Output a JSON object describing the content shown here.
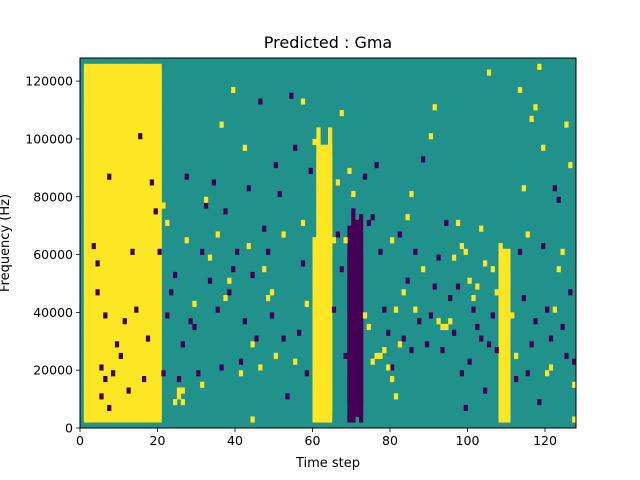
{
  "chart_data": {
    "type": "heatmap",
    "title": "Predicted : Gma",
    "xlabel": "Time step",
    "ylabel": "Frequency (Hz)",
    "xlim": [
      0,
      128
    ],
    "ylim": [
      0,
      128000
    ],
    "x_ticks": [
      0,
      20,
      40,
      60,
      80,
      100,
      120
    ],
    "x_tick_labels": [
      "0",
      "20",
      "40",
      "60",
      "80",
      "100",
      "120"
    ],
    "y_ticks": [
      0,
      20000,
      40000,
      60000,
      80000,
      100000,
      120000
    ],
    "y_tick_labels": [
      "0",
      "20000",
      "40000",
      "60000",
      "80000",
      "100000",
      "120000"
    ],
    "colormap": "viridis",
    "colors": {
      "background": "#21918c",
      "high": "#fde725",
      "low": "#440154",
      "frame": "#000000"
    },
    "grid": false,
    "n_time_steps": 128,
    "n_frequency_bins": 64,
    "bin_hz": 2000,
    "yellow_runs": [
      [
        1,
        20,
        4000,
        124000,
        2000,
        122000
      ],
      [
        60,
        60,
        4000,
        64000,
        2000,
        40000,
        6000,
        34000
      ],
      [
        61,
        61,
        4000,
        102000,
        2000,
        98000,
        6000,
        92000
      ],
      [
        62,
        62,
        4000,
        96000,
        2000,
        94000,
        6000,
        88000
      ],
      [
        63,
        63,
        6000,
        96000,
        2000,
        90000,
        4000,
        86000
      ],
      [
        64,
        64,
        6000,
        102000,
        2000,
        96000,
        4000,
        92000
      ],
      [
        108,
        108,
        4000,
        62000,
        2000,
        52000,
        6000,
        44000
      ],
      [
        109,
        109,
        6000,
        60000,
        2000,
        48000,
        4000,
        40000
      ],
      [
        110,
        110,
        4000,
        60000,
        2000,
        52000,
        6000,
        46000
      ]
    ],
    "purple_runs": [
      [
        69,
        69,
        8000,
        68000,
        2000,
        60000
      ],
      [
        70,
        70,
        10000,
        74000,
        2000,
        66000
      ],
      [
        71,
        71,
        8000,
        70000,
        4000,
        62000
      ],
      [
        72,
        72,
        8000,
        72000,
        2000,
        58000
      ]
    ],
    "yellow_cells": [
      [
        2,
        122000
      ],
      [
        1,
        110000
      ],
      [
        2,
        110000
      ],
      [
        2,
        106000
      ],
      [
        1,
        2000
      ],
      [
        4,
        24000
      ],
      [
        5,
        54000
      ],
      [
        5,
        60000
      ],
      [
        12,
        32000
      ],
      [
        13,
        30000
      ],
      [
        16,
        62000
      ],
      [
        21,
        76000
      ],
      [
        22,
        70000
      ],
      [
        24,
        8000
      ],
      [
        25,
        12000
      ],
      [
        25,
        10000
      ],
      [
        26,
        12000
      ],
      [
        26,
        8000
      ],
      [
        27,
        64000
      ],
      [
        29,
        42000
      ],
      [
        31,
        14000
      ],
      [
        32,
        78000
      ],
      [
        33,
        58000
      ],
      [
        35,
        66000
      ],
      [
        36,
        104000
      ],
      [
        37,
        44000
      ],
      [
        38,
        50000
      ],
      [
        39,
        116000
      ],
      [
        41,
        18000
      ],
      [
        42,
        96000
      ],
      [
        43,
        62000
      ],
      [
        44,
        28000
      ],
      [
        44,
        2000
      ],
      [
        46,
        20000
      ],
      [
        47,
        54000
      ],
      [
        48,
        44000
      ],
      [
        49,
        46000
      ],
      [
        50,
        24000
      ],
      [
        52,
        66000
      ],
      [
        55,
        22000
      ],
      [
        57,
        70000
      ],
      [
        57,
        112000
      ],
      [
        58,
        42000
      ],
      [
        60,
        98000
      ],
      [
        65,
        64000
      ],
      [
        66,
        84000
      ],
      [
        67,
        108000
      ],
      [
        68,
        64000
      ],
      [
        69,
        88000
      ],
      [
        70,
        80000
      ],
      [
        73,
        38000
      ],
      [
        74,
        34000
      ],
      [
        75,
        22000
      ],
      [
        76,
        24000
      ],
      [
        77,
        24000
      ],
      [
        78,
        26000
      ],
      [
        79,
        20000
      ],
      [
        80,
        16000
      ],
      [
        81,
        10000
      ],
      [
        80,
        64000
      ],
      [
        81,
        40000
      ],
      [
        82,
        28000
      ],
      [
        83,
        46000
      ],
      [
        84,
        72000
      ],
      [
        85,
        80000
      ],
      [
        86,
        40000
      ],
      [
        88,
        54000
      ],
      [
        90,
        100000
      ],
      [
        91,
        110000
      ],
      [
        92,
        36000
      ],
      [
        93,
        34000
      ],
      [
        94,
        34000
      ],
      [
        95,
        36000
      ],
      [
        96,
        58000
      ],
      [
        97,
        70000
      ],
      [
        98,
        62000
      ],
      [
        99,
        60000
      ],
      [
        100,
        50000
      ],
      [
        101,
        44000
      ],
      [
        102,
        48000
      ],
      [
        103,
        68000
      ],
      [
        104,
        56000
      ],
      [
        105,
        122000
      ],
      [
        106,
        54000
      ],
      [
        107,
        46000
      ],
      [
        108,
        14000
      ],
      [
        111,
        38000
      ],
      [
        112,
        24000
      ],
      [
        113,
        116000
      ],
      [
        114,
        82000
      ],
      [
        115,
        66000
      ],
      [
        116,
        106000
      ],
      [
        117,
        110000
      ],
      [
        118,
        124000
      ],
      [
        119,
        96000
      ],
      [
        120,
        18000
      ],
      [
        121,
        20000
      ],
      [
        122,
        40000
      ],
      [
        123,
        54000
      ],
      [
        124,
        60000
      ],
      [
        125,
        104000
      ],
      [
        126,
        90000
      ],
      [
        127,
        14000
      ],
      [
        127,
        2000
      ]
    ],
    "purple_cells": [
      [
        3,
        62000
      ],
      [
        4,
        46000
      ],
      [
        4,
        56000
      ],
      [
        5,
        10000
      ],
      [
        5,
        20000
      ],
      [
        6,
        38000
      ],
      [
        6,
        16000
      ],
      [
        7,
        86000
      ],
      [
        7,
        6000
      ],
      [
        8,
        18000
      ],
      [
        9,
        28000
      ],
      [
        10,
        24000
      ],
      [
        11,
        36000
      ],
      [
        12,
        12000
      ],
      [
        13,
        60000
      ],
      [
        14,
        40000
      ],
      [
        15,
        100000
      ],
      [
        16,
        16000
      ],
      [
        17,
        30000
      ],
      [
        18,
        84000
      ],
      [
        19,
        74000
      ],
      [
        20,
        60000
      ],
      [
        21,
        18000
      ],
      [
        22,
        38000
      ],
      [
        23,
        46000
      ],
      [
        24,
        52000
      ],
      [
        25,
        16000
      ],
      [
        26,
        28000
      ],
      [
        27,
        86000
      ],
      [
        28,
        36000
      ],
      [
        29,
        34000
      ],
      [
        30,
        18000
      ],
      [
        31,
        60000
      ],
      [
        32,
        76000
      ],
      [
        33,
        50000
      ],
      [
        34,
        84000
      ],
      [
        35,
        40000
      ],
      [
        36,
        20000
      ],
      [
        37,
        74000
      ],
      [
        38,
        46000
      ],
      [
        39,
        54000
      ],
      [
        40,
        60000
      ],
      [
        41,
        22000
      ],
      [
        42,
        36000
      ],
      [
        43,
        82000
      ],
      [
        44,
        52000
      ],
      [
        45,
        30000
      ],
      [
        46,
        112000
      ],
      [
        47,
        68000
      ],
      [
        48,
        60000
      ],
      [
        49,
        38000
      ],
      [
        50,
        90000
      ],
      [
        51,
        80000
      ],
      [
        52,
        30000
      ],
      [
        53,
        10000
      ],
      [
        54,
        114000
      ],
      [
        55,
        96000
      ],
      [
        56,
        32000
      ],
      [
        57,
        56000
      ],
      [
        58,
        18000
      ],
      [
        59,
        88000
      ],
      [
        65,
        40000
      ],
      [
        66,
        66000
      ],
      [
        67,
        54000
      ],
      [
        68,
        24000
      ],
      [
        73,
        86000
      ],
      [
        74,
        70000
      ],
      [
        75,
        72000
      ],
      [
        76,
        90000
      ],
      [
        77,
        60000
      ],
      [
        78,
        40000
      ],
      [
        79,
        32000
      ],
      [
        80,
        20000
      ],
      [
        82,
        66000
      ],
      [
        83,
        30000
      ],
      [
        84,
        50000
      ],
      [
        85,
        26000
      ],
      [
        86,
        60000
      ],
      [
        87,
        36000
      ],
      [
        88,
        92000
      ],
      [
        89,
        28000
      ],
      [
        90,
        38000
      ],
      [
        91,
        48000
      ],
      [
        92,
        58000
      ],
      [
        93,
        26000
      ],
      [
        94,
        70000
      ],
      [
        95,
        44000
      ],
      [
        96,
        32000
      ],
      [
        97,
        48000
      ],
      [
        98,
        18000
      ],
      [
        99,
        6000
      ],
      [
        100,
        22000
      ],
      [
        101,
        40000
      ],
      [
        102,
        34000
      ],
      [
        103,
        30000
      ],
      [
        104,
        12000
      ],
      [
        105,
        28000
      ],
      [
        106,
        38000
      ],
      [
        107,
        26000
      ],
      [
        112,
        16000
      ],
      [
        113,
        60000
      ],
      [
        114,
        44000
      ],
      [
        115,
        18000
      ],
      [
        116,
        28000
      ],
      [
        117,
        36000
      ],
      [
        118,
        8000
      ],
      [
        119,
        62000
      ],
      [
        120,
        40000
      ],
      [
        121,
        30000
      ],
      [
        122,
        82000
      ],
      [
        123,
        78000
      ],
      [
        124,
        34000
      ],
      [
        125,
        24000
      ],
      [
        126,
        46000
      ],
      [
        127,
        22000
      ]
    ]
  }
}
